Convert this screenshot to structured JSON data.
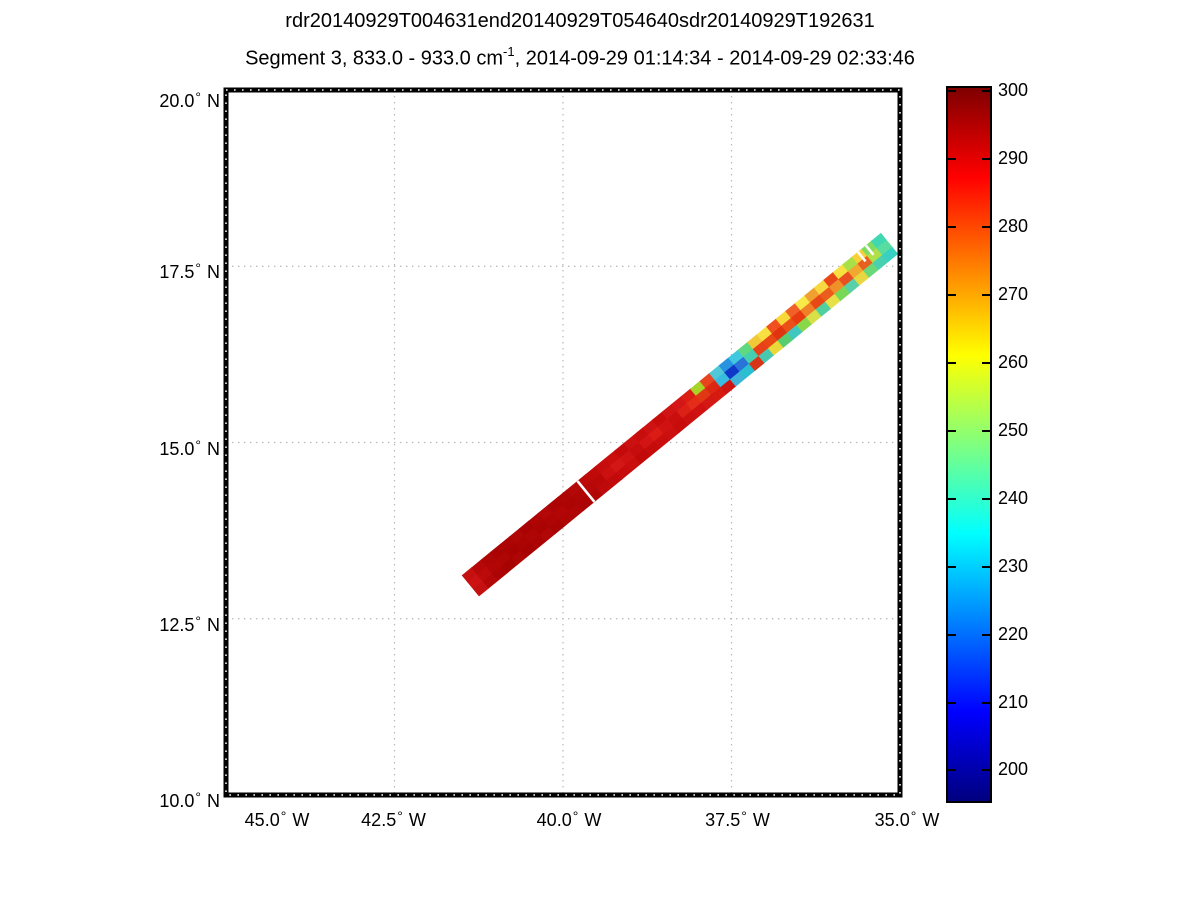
{
  "figure": {
    "title": "rdr20140929T004631end20140929T054640sdr20140929T192631",
    "subtitle_pre": "Segment 3, 833.0 - 933.0 cm",
    "subtitle_sup": "-1",
    "subtitle_post": ", 2014-09-29 01:14:34 - 2014-09-29 02:33:46",
    "background": "#ffffff"
  },
  "chart_data": {
    "type": "heatmap",
    "title": "rdr20140929T004631end20140929T054640sdr20140929T192631",
    "subtitle": "Segment 3, 833.0 - 933.0 cm^-1, 2014-09-29 01:14:34 - 2014-09-29 02:33:46",
    "projection": "mercator map of satellite swath",
    "grid": "dotted",
    "x_axis": {
      "suffix": "W",
      "degree_symbol": "°",
      "ticks": [
        45.0,
        42.5,
        40.0,
        37.5,
        35.0
      ],
      "range_deg_west": [
        45.0,
        35.0
      ]
    },
    "y_axis": {
      "suffix": "N",
      "degree_symbol": "°",
      "ticks": [
        10.0,
        12.5,
        15.0,
        17.5,
        20.0
      ],
      "range_deg_north": [
        10.0,
        20.0
      ]
    },
    "colorbar": {
      "colormap": "jet",
      "vmin": 195.5,
      "vmax": 300.5,
      "ticks": [
        300,
        290,
        280,
        270,
        260,
        250,
        240,
        230,
        220,
        210,
        200
      ],
      "stops": [
        [
          0,
          "#7f0000"
        ],
        [
          12.5,
          "#ff0000"
        ],
        [
          37.5,
          "#ffff00"
        ],
        [
          62.5,
          "#00ffff"
        ],
        [
          87.5,
          "#0000ff"
        ],
        [
          100,
          "#00007f"
        ]
      ]
    },
    "colors": {
      "frame": "#000000",
      "frame_dots": "#ffffff",
      "grid": "#b4b4b4",
      "background": "#ffffff"
    },
    "swath": {
      "description": "Brightness temperature (K) swath, dark red ~295-300 K in SW half, cold blue patch ~200-230 K near 37.6W 15.9N, mixed 250-290 K to NE, green ~250 K at NE tip",
      "track_start": {
        "lon_west": 41.37,
        "lat_north": 12.97
      },
      "track_end": {
        "lon_west": 35.16,
        "lat_north": 17.82
      },
      "width_deg_lat": 0.38,
      "gaps": [
        {
          "t": 0.273,
          "extent": "full"
        },
        {
          "t": 0.943,
          "extent": "upper"
        },
        {
          "t": 0.962,
          "extent": "upper"
        }
      ],
      "cells": [
        [
          "#c41010",
          "#cc1212",
          "#c41010"
        ],
        [
          "#b60808",
          "#bc0a0a",
          "#b40808"
        ],
        [
          "#ae0505",
          "#b20606",
          "#ac0404"
        ],
        [
          "#aa0303",
          "#ae0505",
          "#a80303"
        ],
        [
          "#ac0404",
          "#a80202",
          "#ae0505"
        ],
        [
          "#b00606",
          "#ac0404",
          "#a80202"
        ],
        [
          "#a80202",
          "#b00505",
          "#ac0404"
        ],
        [
          "#ae0404",
          "#aa0303",
          "#b20707"
        ],
        [
          "#b40808",
          "#ae0404",
          "#aa0303"
        ],
        [
          "#ac0404",
          "#b20606",
          "#ae0505"
        ],
        [
          "#b00505",
          "#ac0303",
          "#b00606"
        ],
        [
          "#b40707",
          "#b00505",
          "#ac0404"
        ],
        [
          "#bc0a0a",
          "#b60808",
          "#b20606"
        ],
        [
          "#c00a0a",
          "#ba0808",
          "#be0a0a"
        ],
        [
          "#c60c0c",
          "#cc1010",
          "#c20a0a"
        ],
        [
          "#ca0e0e",
          "#d41616",
          "#c60c0c"
        ],
        [
          "#c40a0a",
          "#ce1212",
          "#ca0e0e"
        ],
        [
          "#cc1010",
          "#c60c0c",
          "#c20909"
        ],
        [
          "#c80d0d",
          "#d21414",
          "#c60b0b"
        ],
        [
          "#ce1212",
          "#da1c14",
          "#ca0e0e"
        ],
        [
          "#c80c0c",
          "#d01212",
          "#cc1010"
        ],
        [
          "#d01313",
          "#ca0e0e",
          "#c80c0c"
        ],
        [
          "#d41616",
          "#dc2016",
          "#cc1010"
        ],
        [
          "#da1e14",
          "#e42c18",
          "#d01212"
        ],
        [
          "#a8d428",
          "#e03814",
          "#d41814"
        ],
        [
          "#e84420",
          "#dc2812",
          "#d61a10"
        ],
        [
          "#50c8d8",
          "#38bce0",
          "#cc1410"
        ],
        [
          "#2894e0",
          "#1038c8",
          "#40b4d8"
        ],
        [
          "#40c8e0",
          "#2874d8",
          "#28c0d0"
        ],
        [
          "#60d880",
          "#44d0b0",
          "#d83418"
        ],
        [
          "#f0c838",
          "#e84018",
          "#48c8b0"
        ],
        [
          "#f8e040",
          "#e84814",
          "#e8d838"
        ],
        [
          "#f05020",
          "#e03410",
          "#58cc70"
        ],
        [
          "#f8d838",
          "#ec5018",
          "#40c8c0"
        ],
        [
          "#f06028",
          "#e83c10",
          "#88d848"
        ],
        [
          "#f8e848",
          "#f08028",
          "#d8e048"
        ],
        [
          "#f0a030",
          "#e84814",
          "#50d0a0"
        ],
        [
          "#f8d840",
          "#ec5c1c",
          "#e8e048"
        ],
        [
          "#e84818",
          "#f09028",
          "#78d858"
        ],
        [
          "#f8e040",
          "#e85020",
          "#58d0a8"
        ],
        [
          "#a8e048",
          "#f0a830",
          "#e8d840"
        ],
        [
          "#f8d038",
          "#e86020",
          "#68d878"
        ],
        [
          "#80dc60",
          "#b0e048",
          "#48d0b0"
        ],
        [
          "#40d8b0",
          "#58dca0",
          "#38d0c0"
        ]
      ]
    }
  }
}
